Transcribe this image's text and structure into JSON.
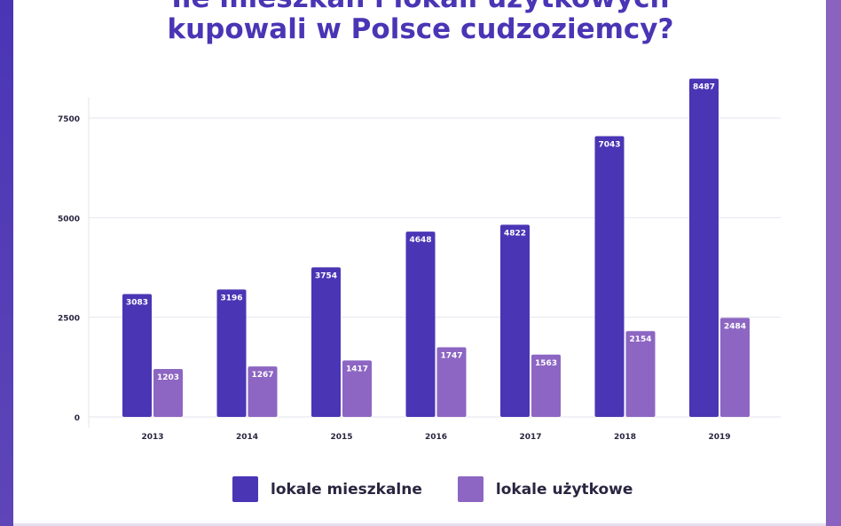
{
  "title_line1": "Ile mieszkań i lokali użytkowych",
  "title_line2": "kupowali w Polsce cudzoziemcy?",
  "colors": {
    "mieszkalne": "#4a35b5",
    "uzytkowe": "#8c66c2",
    "title": "#4a35b5"
  },
  "chart_data": {
    "type": "bar",
    "title": "Ile mieszkań i lokali użytkowych kupowali w Polsce cudzoziemcy?",
    "categories": [
      "2013",
      "2014",
      "2015",
      "2016",
      "2017",
      "2018",
      "2019"
    ],
    "series": [
      {
        "name": "lokale mieszkalne",
        "values": [
          3083,
          3196,
          3754,
          4648,
          4822,
          7043,
          8487
        ]
      },
      {
        "name": "lokale użytkowe",
        "values": [
          1203,
          1267,
          1417,
          1747,
          1563,
          2154,
          2484
        ]
      }
    ],
    "yticks": [
      0,
      2500,
      5000,
      7500
    ],
    "ylim": [
      0,
      8800
    ],
    "grid": true,
    "legend": "bottom-center",
    "xlabel": "",
    "ylabel": ""
  }
}
